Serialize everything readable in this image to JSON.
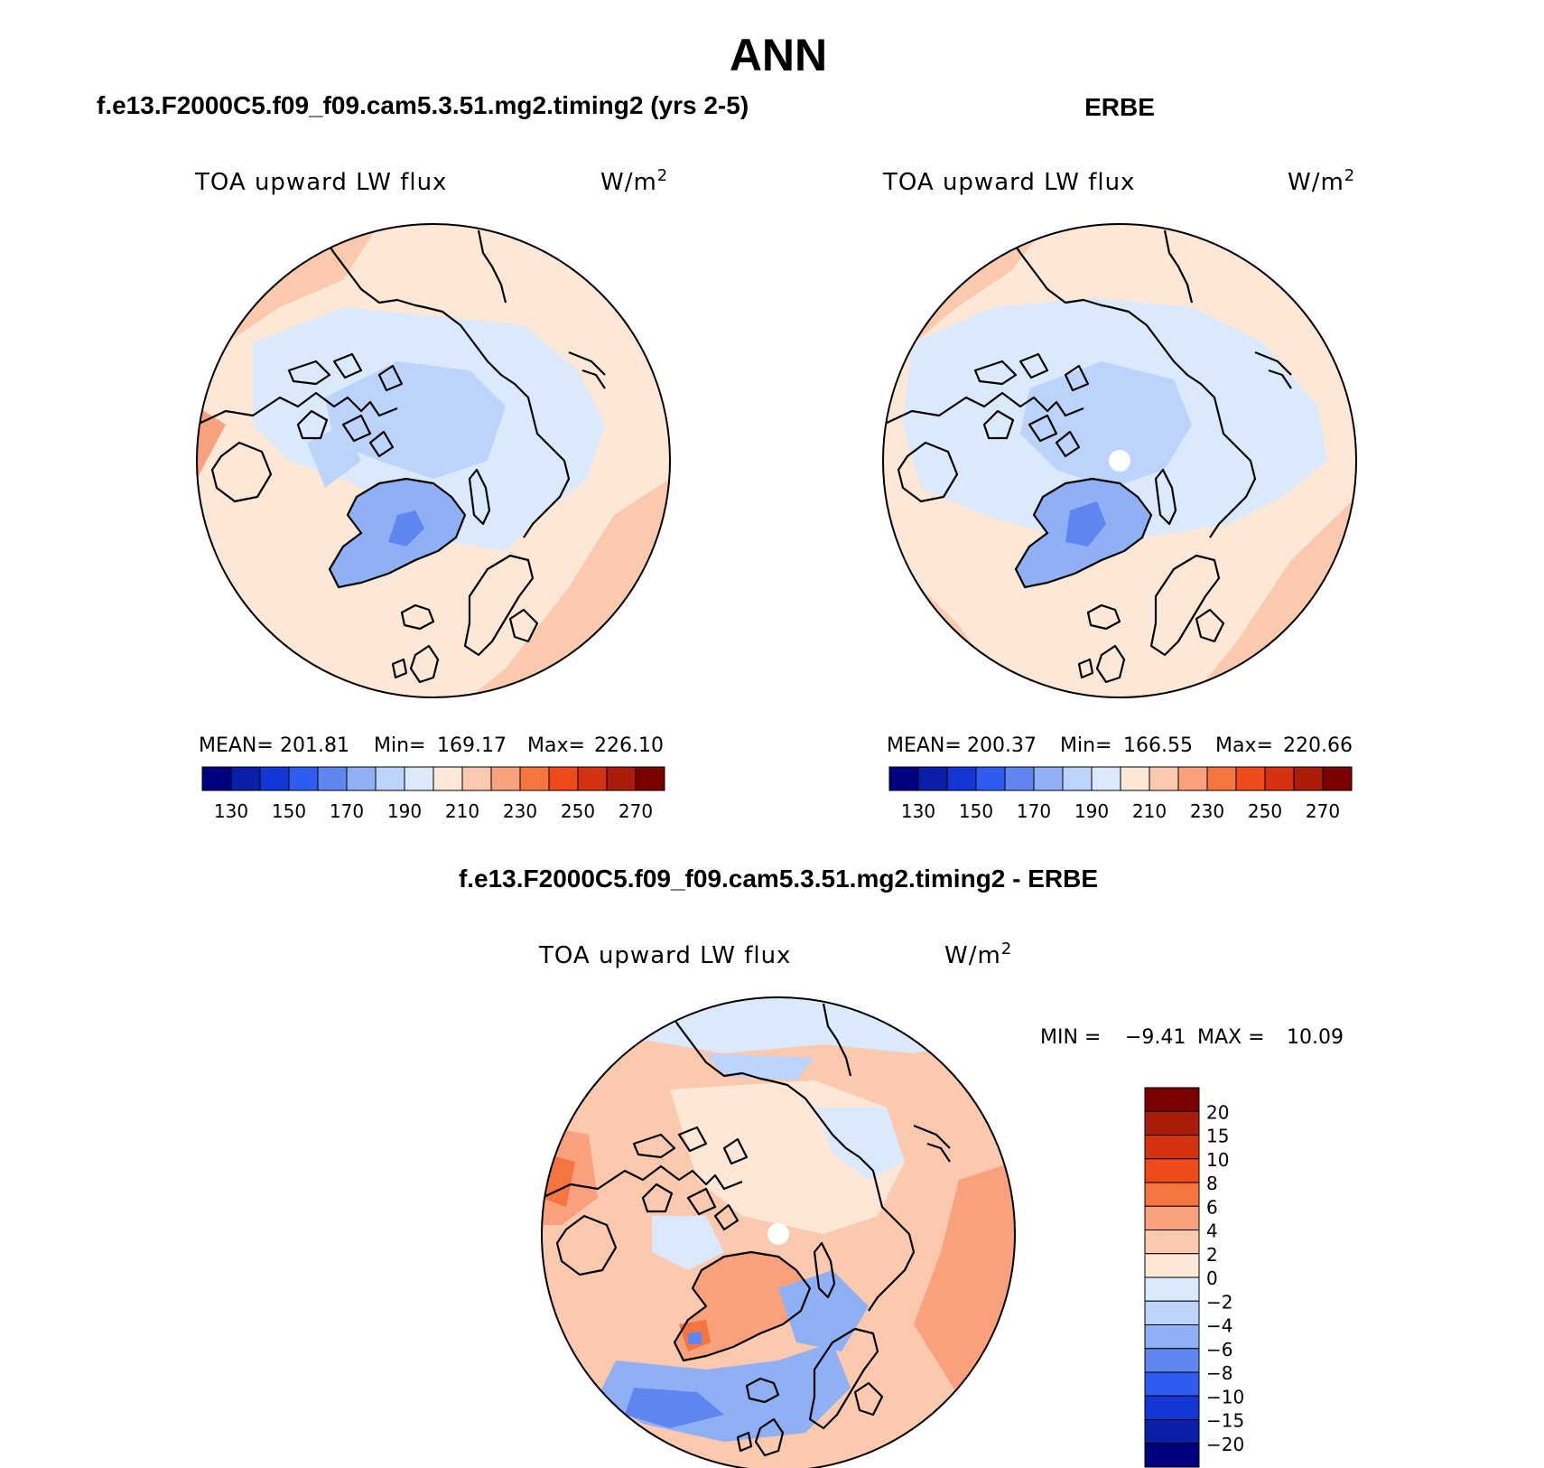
{
  "figure": {
    "title": "ANN",
    "colors": {
      "abs_scale": [
        "#00007f",
        "#0a1fa8",
        "#1536d6",
        "#2e5cf0",
        "#5f86f0",
        "#8fb0f5",
        "#bcd3fb",
        "#dbe9fc",
        "#fde7d6",
        "#fbc9ae",
        "#f9a07d",
        "#f6743f",
        "#ef4a1a",
        "#d43210",
        "#aa1d0a",
        "#7a0000"
      ],
      "diff_scale": [
        "#00007f",
        "#0a1fa8",
        "#1536d6",
        "#2e5cf0",
        "#5f86f0",
        "#8fb0f5",
        "#bcd3fb",
        "#dbe9fc",
        "#fde7d6",
        "#fbc9ae",
        "#f9a07d",
        "#f6743f",
        "#ef4a1a",
        "#d43210",
        "#aa1d0a",
        "#7a0000"
      ],
      "pole_hole": "#ffffff"
    },
    "panels": [
      {
        "id": "model",
        "case_title": "f.e13.F2000C5.f09_f09.cam5.3.51.mg2.timing2 (yrs 2-5)",
        "variable": "TOA upward LW flux",
        "units_base": "W/m",
        "units_exp": "2",
        "stats": {
          "mean_label": "MEAN=",
          "mean": "201.81",
          "min_label": "Min=",
          "min": "169.17",
          "max_label": "Max=",
          "max": "226.10"
        },
        "colorbar_ticks": [
          "130",
          "150",
          "170",
          "190",
          "210",
          "230",
          "250",
          "270"
        ],
        "icons": [
          "polar-stereographic-map"
        ]
      },
      {
        "id": "obs",
        "case_title": "ERBE",
        "variable": "TOA upward LW flux",
        "units_base": "W/m",
        "units_exp": "2",
        "stats": {
          "mean_label": "MEAN=",
          "mean": "200.37",
          "min_label": "Min=",
          "min": "166.55",
          "max_label": "Max=",
          "max": "220.66"
        },
        "colorbar_ticks": [
          "130",
          "150",
          "170",
          "190",
          "210",
          "230",
          "250",
          "270"
        ],
        "icons": [
          "polar-stereographic-map"
        ]
      },
      {
        "id": "diff",
        "case_title": "f.e13.F2000C5.f09_f09.cam5.3.51.mg2.timing2 - ERBE",
        "variable": "TOA upward LW flux",
        "units_base": "W/m",
        "units_exp": "2",
        "range": {
          "min_label": "MIN =",
          "min": "−9.41",
          "max_label": "MAX =",
          "max": "10.09"
        },
        "colorbar_ticks": [
          "20",
          "15",
          "10",
          "8",
          "6",
          "4",
          "2",
          "0",
          "−2",
          "−4",
          "−6",
          "−8",
          "−10",
          "−15",
          "−20"
        ],
        "icons": [
          "polar-stereographic-map"
        ]
      }
    ]
  }
}
